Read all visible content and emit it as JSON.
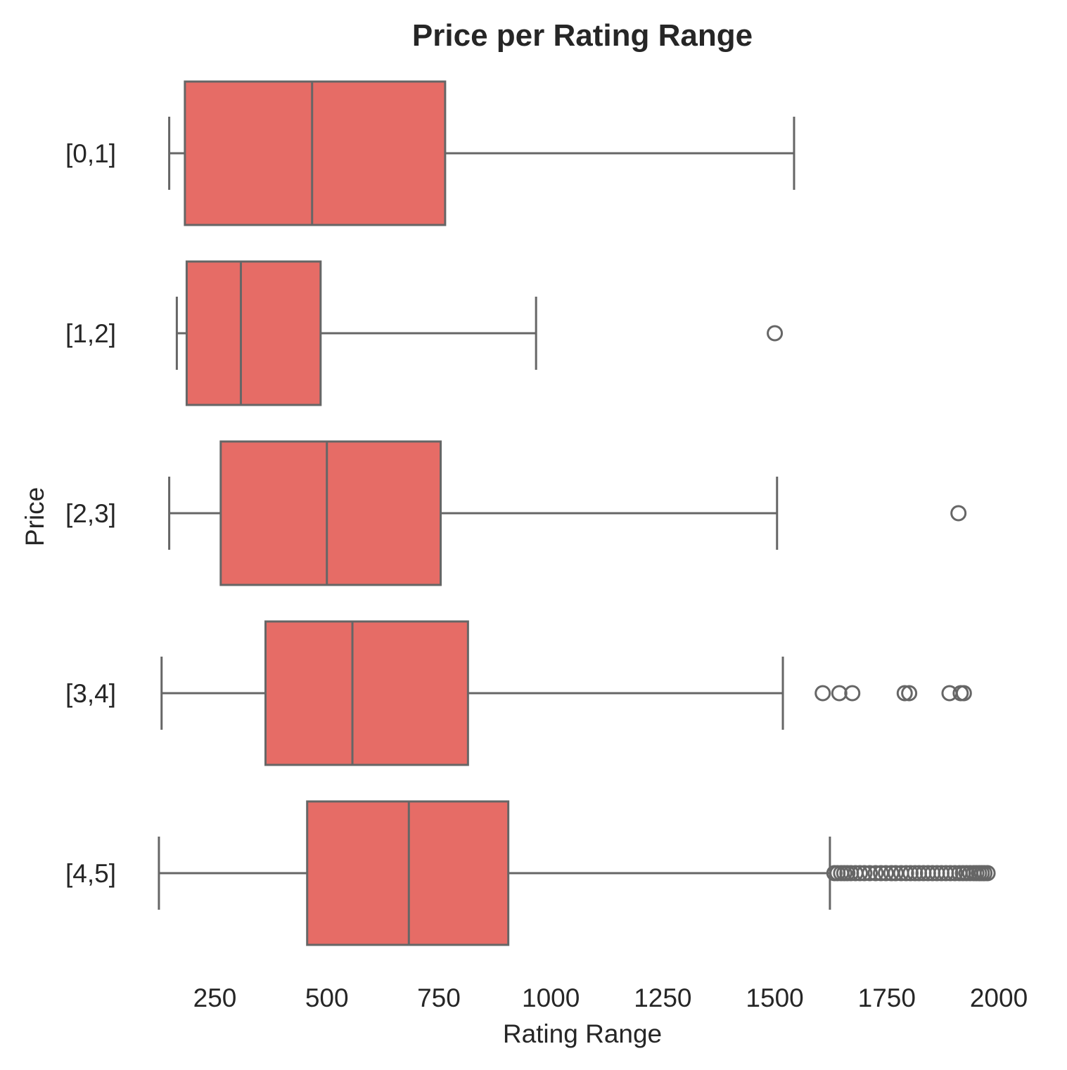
{
  "chart_data": {
    "type": "boxplot",
    "orientation": "horizontal",
    "title": "Price per Rating Range",
    "xlabel": "Rating Range",
    "ylabel": "Price",
    "xlim": [
      100,
      2000
    ],
    "xticks": [
      250,
      500,
      750,
      1000,
      1250,
      1500,
      1750,
      2000
    ],
    "grid": false,
    "colors": {
      "box_fill": "#e66c66",
      "line": "#666666",
      "text": "#262626"
    },
    "categories": [
      "[0,1]",
      "[1,2]",
      "[2,3]",
      "[3,4]",
      "[4,5]"
    ],
    "series": [
      {
        "category": "[0,1]",
        "whisker_low": 148,
        "q1": 183,
        "median": 467,
        "q3": 764,
        "whisker_high": 1543,
        "outliers": []
      },
      {
        "category": "[1,2]",
        "whisker_low": 165,
        "q1": 187,
        "median": 308,
        "q3": 486,
        "whisker_high": 967,
        "outliers": [
          1500
        ]
      },
      {
        "category": "[2,3]",
        "whisker_low": 148,
        "q1": 263,
        "median": 500,
        "q3": 754,
        "whisker_high": 1505,
        "outliers": [
          1910
        ]
      },
      {
        "category": "[3,4]",
        "whisker_low": 131,
        "q1": 363,
        "median": 557,
        "q3": 815,
        "whisker_high": 1518,
        "outliers": [
          1607,
          1644,
          1673,
          1790,
          1800,
          1890,
          1915,
          1922
        ]
      },
      {
        "category": "[4,5]",
        "whisker_low": 125,
        "q1": 456,
        "median": 683,
        "q3": 905,
        "whisker_high": 1623,
        "outliers": [
          1633,
          1640,
          1648,
          1655,
          1662,
          1670,
          1680,
          1690,
          1700,
          1712,
          1725,
          1737,
          1748,
          1760,
          1770,
          1782,
          1793,
          1803,
          1813,
          1822,
          1832,
          1842,
          1852,
          1862,
          1872,
          1882,
          1892,
          1902,
          1912,
          1920,
          1928,
          1936,
          1944,
          1950,
          1956,
          1962,
          1968,
          1975
        ]
      }
    ]
  }
}
